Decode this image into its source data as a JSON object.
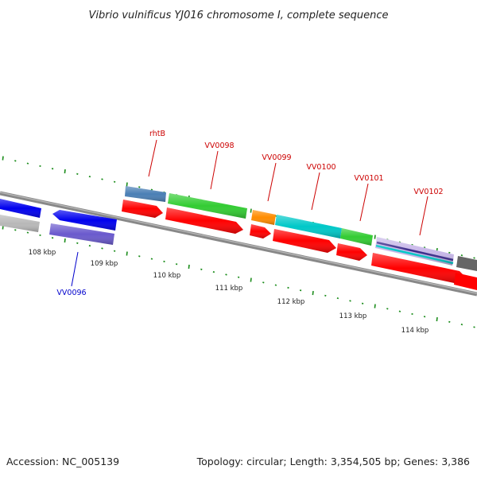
{
  "title": "Vibrio vulnificus YJ016 chromosome I, complete sequence",
  "footer": {
    "accession": "Accession: NC_005139",
    "topology": "Topology: circular; Length: 3,354,505 bp; Genes: 3,386"
  },
  "scale_labels": [
    "108 kbp",
    "109 kbp",
    "110 kbp",
    "111 kbp",
    "112 kbp",
    "113 kbp",
    "114 kbp"
  ],
  "gene_labels": [
    {
      "text": "rhtB",
      "color": "#cc0000"
    },
    {
      "text": "VV0098",
      "color": "#cc0000"
    },
    {
      "text": "VV0099",
      "color": "#cc0000"
    },
    {
      "text": "VV0100",
      "color": "#cc0000"
    },
    {
      "text": "VV0101",
      "color": "#cc0000"
    },
    {
      "text": "VV0102",
      "color": "#cc0000"
    },
    {
      "text": "VV0096",
      "color": "#0000cc"
    }
  ],
  "colors": {
    "backbone": "#777777",
    "tick": "#1a8c1a",
    "cds": "#ff0000",
    "blue": "#0000ee",
    "steelblue": "#4a7fb5",
    "green": "#33cc33",
    "orange": "#ff8c00",
    "cyan": "#00c8c8",
    "purple": "#6a5acd",
    "grey": "#b0b0b0",
    "darkgrey": "#666666"
  }
}
